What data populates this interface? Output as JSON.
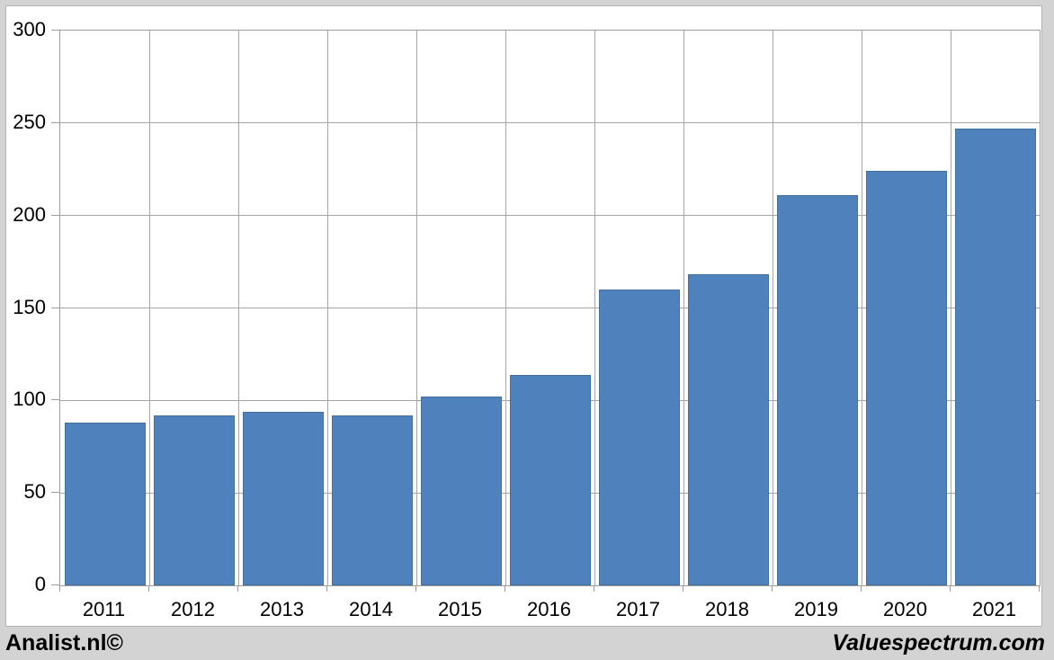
{
  "chart_data": {
    "type": "bar",
    "categories": [
      "2011",
      "2012",
      "2013",
      "2014",
      "2015",
      "2016",
      "2017",
      "2018",
      "2019",
      "2020",
      "2021"
    ],
    "values": [
      88,
      92,
      94,
      92,
      102,
      114,
      160,
      168,
      211,
      224,
      247
    ],
    "title": "",
    "xlabel": "",
    "ylabel": "",
    "ylim": [
      0,
      300
    ],
    "yticks": [
      0,
      50,
      100,
      150,
      200,
      250,
      300
    ],
    "grid": true,
    "legend_position": "none",
    "bar_color": "#4f81bd",
    "bar_border_color": "#41719c"
  },
  "footer": {
    "left_text": "Analist.nl©",
    "right_text": "Valuespectrum.com"
  },
  "colors": {
    "page_bg": "#d3d3d3",
    "panel_bg": "#ffffff",
    "gridline": "#a6a6a6",
    "plot_border": "#9d9d9d",
    "label_text": "#000000"
  }
}
